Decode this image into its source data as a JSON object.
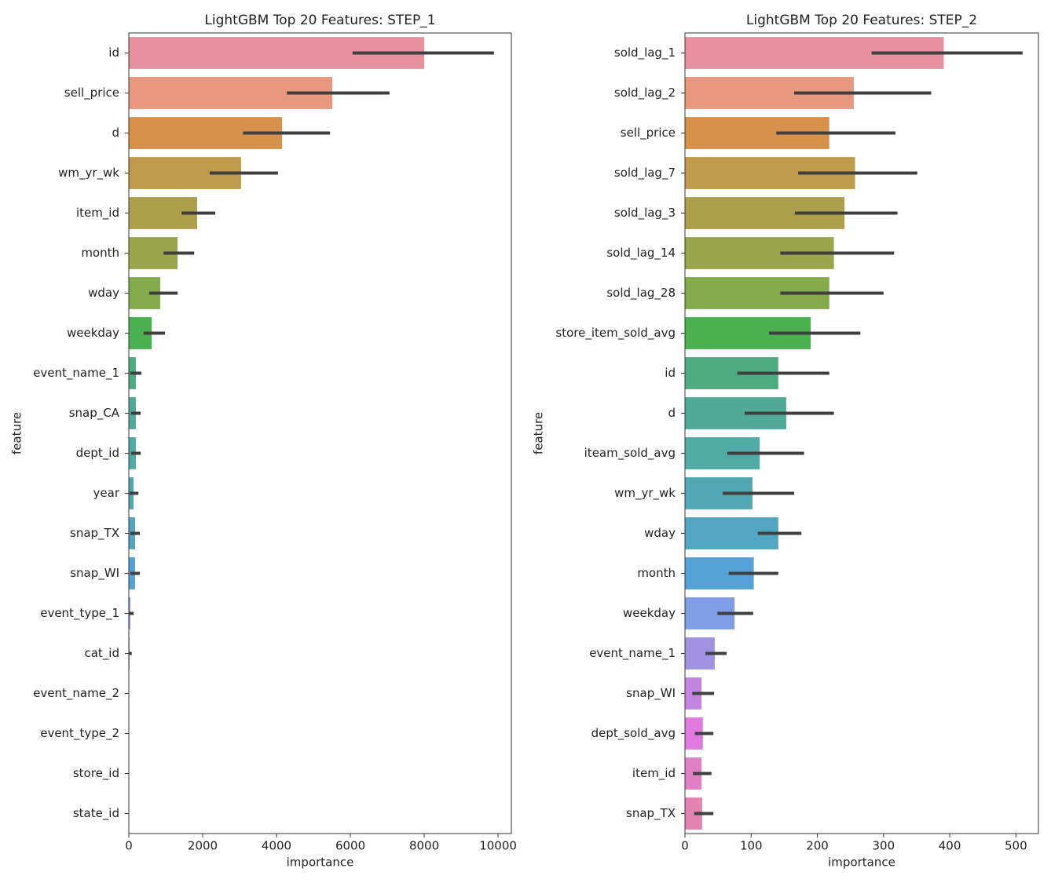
{
  "chart_data": [
    {
      "type": "bar",
      "orientation": "horizontal",
      "title": "LightGBM Top 20 Features: STEP_1",
      "xlabel": "importance",
      "ylabel": "feature",
      "categories": [
        "id",
        "sell_price",
        "d",
        "wm_yr_wk",
        "item_id",
        "month",
        "wday",
        "weekday",
        "event_name_1",
        "snap_CA",
        "dept_id",
        "year",
        "snap_TX",
        "snap_WI",
        "event_type_1",
        "cat_id",
        "event_name_2",
        "event_type_2",
        "store_id",
        "state_id"
      ],
      "values": [
        8000,
        5510,
        4150,
        3040,
        1850,
        1320,
        850,
        620,
        190,
        190,
        190,
        130,
        170,
        170,
        40,
        20,
        0,
        0,
        0,
        0
      ],
      "ci_low": [
        6060,
        4280,
        3090,
        2190,
        1430,
        940,
        550,
        400,
        40,
        60,
        60,
        20,
        40,
        40,
        0,
        0,
        0,
        0,
        0,
        0
      ],
      "ci_high": [
        9890,
        7060,
        5450,
        4040,
        2340,
        1770,
        1320,
        980,
        340,
        320,
        320,
        260,
        300,
        300,
        130,
        80,
        0,
        0,
        0,
        0
      ],
      "colors": [
        "#e8919e",
        "#e8987f",
        "#d8914b",
        "#c19b4c",
        "#ae9f4b",
        "#9ba54b",
        "#83aa4b",
        "#4bb04f",
        "#4dad81",
        "#4fab97",
        "#50aaa5",
        "#51a8b3",
        "#52a6c2",
        "#54a2d8",
        "#7f9ee6",
        "#a092e0",
        "#c385e0",
        "#e17adf",
        "#e17fc6",
        "#e283b2"
      ],
      "xlim": [
        0,
        10360
      ],
      "xticks": [
        0,
        2000,
        4000,
        6000,
        8000,
        10000
      ]
    },
    {
      "type": "bar",
      "orientation": "horizontal",
      "title": "LightGBM Top 20 Features: STEP_2",
      "xlabel": "importance",
      "ylabel": "feature",
      "categories": [
        "sold_lag_1",
        "sold_lag_2",
        "sell_price",
        "sold_lag_7",
        "sold_lag_3",
        "sold_lag_14",
        "sold_lag_28",
        "store_item_sold_avg",
        "id",
        "d",
        "iteam_sold_avg",
        "wm_yr_wk",
        "wday",
        "month",
        "weekday",
        "event_name_1",
        "snap_WI",
        "dept_sold_avg",
        "item_id",
        "snap_TX"
      ],
      "values": [
        391,
        255,
        218,
        257,
        241,
        225,
        218,
        190,
        141,
        153,
        113,
        102,
        141,
        104,
        75,
        45,
        25,
        27,
        25,
        26
      ],
      "ci_low": [
        282,
        165,
        138,
        171,
        166,
        144,
        144,
        127,
        79,
        90,
        64,
        57,
        110,
        66,
        49,
        31,
        11,
        15,
        12,
        14
      ],
      "ci_high": [
        510,
        372,
        318,
        351,
        321,
        316,
        300,
        265,
        218,
        225,
        180,
        165,
        176,
        141,
        103,
        63,
        44,
        43,
        40,
        43
      ],
      "colors": [
        "#e8919e",
        "#e8987f",
        "#d8914b",
        "#c19b4c",
        "#ae9f4b",
        "#9ba54b",
        "#83aa4b",
        "#4bb04f",
        "#4dad81",
        "#4fab97",
        "#50aaa5",
        "#51a8b3",
        "#52a6c2",
        "#54a2d8",
        "#7f9ee6",
        "#a092e0",
        "#c385e0",
        "#e17adf",
        "#e17fc6",
        "#e283b2"
      ],
      "xlim": [
        0,
        534
      ],
      "xticks": [
        0,
        100,
        200,
        300,
        400,
        500
      ]
    }
  ]
}
